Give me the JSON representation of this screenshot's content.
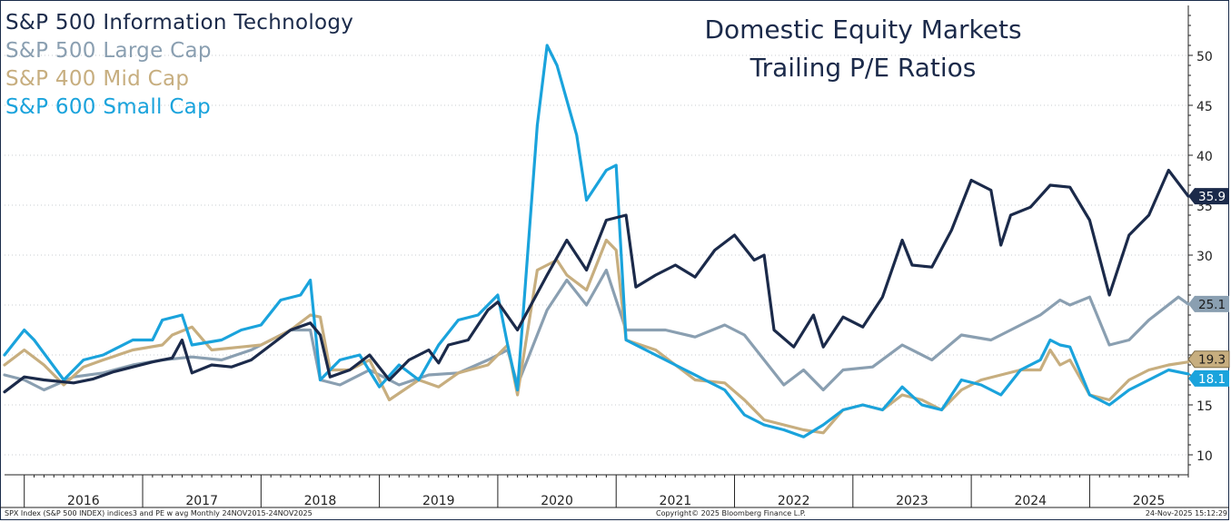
{
  "title": {
    "line1": "Domestic Equity Markets",
    "line2": "Trailing P/E Ratios"
  },
  "footer": {
    "left": "SPX Index (S&P 500 INDEX) indices3 and PE w avg Monthly 24NOV2015-24NOV2025",
    "center": "Copyright© 2025 Bloomberg Finance L.P.",
    "right": "24-Nov-2025 15:12:29"
  },
  "colors": {
    "tech": "#1b2a4a",
    "large": "#8a9fb1",
    "mid": "#c7ae7f",
    "small": "#1aa3dc",
    "grid": "#c9cdd2",
    "axis": "#222222"
  },
  "chart_data": {
    "type": "line",
    "title": "Domestic Equity Markets Trailing P/E Ratios",
    "x_range": [
      "2015-11",
      "2025-11"
    ],
    "ylim": [
      8,
      55
    ],
    "y_ticks": [
      10,
      15,
      20,
      25,
      30,
      35,
      40,
      45,
      50
    ],
    "y_axis_position": "right",
    "x_labels": [
      "2016",
      "2017",
      "2018",
      "2019",
      "2020",
      "2021",
      "2022",
      "2023",
      "2024",
      "2025"
    ],
    "grid": "horizontal dotted",
    "legend_position": "top-left",
    "series": [
      {
        "name": "S&P 500 Information Technology",
        "key": "tech",
        "last_label": "35.9",
        "last_value": 35.9,
        "points": [
          [
            "2015-11",
            16.3
          ],
          [
            "2016-01",
            17.8
          ],
          [
            "2016-03",
            17.5
          ],
          [
            "2016-06",
            17.2
          ],
          [
            "2016-08",
            17.6
          ],
          [
            "2016-10",
            18.3
          ],
          [
            "2016-12",
            18.8
          ],
          [
            "2017-02",
            19.3
          ],
          [
            "2017-04",
            19.7
          ],
          [
            "2017-05",
            21.5
          ],
          [
            "2017-06",
            18.2
          ],
          [
            "2017-08",
            19.0
          ],
          [
            "2017-10",
            18.8
          ],
          [
            "2017-12",
            19.5
          ],
          [
            "2018-02",
            21.0
          ],
          [
            "2018-04",
            22.5
          ],
          [
            "2018-06",
            23.2
          ],
          [
            "2018-07",
            22.0
          ],
          [
            "2018-08",
            17.8
          ],
          [
            "2018-10",
            18.5
          ],
          [
            "2018-12",
            20.0
          ],
          [
            "2019-02",
            17.5
          ],
          [
            "2019-04",
            19.5
          ],
          [
            "2019-06",
            20.5
          ],
          [
            "2019-07",
            19.2
          ],
          [
            "2019-08",
            21.0
          ],
          [
            "2019-10",
            21.5
          ],
          [
            "2019-12",
            24.5
          ],
          [
            "2020-01",
            25.3
          ],
          [
            "2020-03",
            22.5
          ],
          [
            "2020-06",
            28.0
          ],
          [
            "2020-08",
            31.5
          ],
          [
            "2020-10",
            28.5
          ],
          [
            "2020-12",
            33.5
          ],
          [
            "2021-02",
            34.0
          ],
          [
            "2021-03",
            26.8
          ],
          [
            "2021-05",
            28.0
          ],
          [
            "2021-07",
            29.0
          ],
          [
            "2021-09",
            27.8
          ],
          [
            "2021-11",
            30.5
          ],
          [
            "2022-01",
            32.0
          ],
          [
            "2022-03",
            29.5
          ],
          [
            "2022-04",
            30.0
          ],
          [
            "2022-05",
            22.5
          ],
          [
            "2022-07",
            20.8
          ],
          [
            "2022-09",
            24.0
          ],
          [
            "2022-10",
            20.8
          ],
          [
            "2022-12",
            23.8
          ],
          [
            "2023-02",
            22.8
          ],
          [
            "2023-04",
            25.8
          ],
          [
            "2023-06",
            31.5
          ],
          [
            "2023-07",
            29.0
          ],
          [
            "2023-09",
            28.8
          ],
          [
            "2023-11",
            32.5
          ],
          [
            "2024-01",
            37.5
          ],
          [
            "2024-03",
            36.5
          ],
          [
            "2024-04",
            31.0
          ],
          [
            "2024-05",
            34.0
          ],
          [
            "2024-07",
            34.8
          ],
          [
            "2024-09",
            37.0
          ],
          [
            "2024-11",
            36.8
          ],
          [
            "2025-01",
            33.5
          ],
          [
            "2025-03",
            26.0
          ],
          [
            "2025-05",
            32.0
          ],
          [
            "2025-07",
            34.0
          ],
          [
            "2025-09",
            38.5
          ],
          [
            "2025-11",
            35.9
          ]
        ]
      },
      {
        "name": "S&P 500 Large Cap",
        "key": "large",
        "last_label": "25.1",
        "last_value": 25.1,
        "points": [
          [
            "2015-11",
            18.0
          ],
          [
            "2016-01",
            17.5
          ],
          [
            "2016-03",
            16.5
          ],
          [
            "2016-06",
            17.8
          ],
          [
            "2016-09",
            18.2
          ],
          [
            "2016-12",
            19.0
          ],
          [
            "2017-03",
            19.5
          ],
          [
            "2017-06",
            19.8
          ],
          [
            "2017-09",
            19.5
          ],
          [
            "2017-12",
            20.5
          ],
          [
            "2018-02",
            21.5
          ],
          [
            "2018-04",
            22.5
          ],
          [
            "2018-06",
            22.5
          ],
          [
            "2018-07",
            17.5
          ],
          [
            "2018-09",
            17.0
          ],
          [
            "2018-12",
            18.5
          ],
          [
            "2019-03",
            17.0
          ],
          [
            "2019-06",
            18.0
          ],
          [
            "2019-09",
            18.2
          ],
          [
            "2019-12",
            19.5
          ],
          [
            "2020-02",
            20.5
          ],
          [
            "2020-03",
            17.0
          ],
          [
            "2020-06",
            24.5
          ],
          [
            "2020-08",
            27.5
          ],
          [
            "2020-10",
            25.0
          ],
          [
            "2020-12",
            28.5
          ],
          [
            "2021-02",
            22.5
          ],
          [
            "2021-06",
            22.5
          ],
          [
            "2021-09",
            21.8
          ],
          [
            "2021-12",
            23.0
          ],
          [
            "2022-02",
            22.0
          ],
          [
            "2022-04",
            19.5
          ],
          [
            "2022-06",
            17.0
          ],
          [
            "2022-08",
            18.5
          ],
          [
            "2022-10",
            16.5
          ],
          [
            "2022-12",
            18.5
          ],
          [
            "2023-03",
            18.8
          ],
          [
            "2023-06",
            21.0
          ],
          [
            "2023-09",
            19.5
          ],
          [
            "2023-12",
            22.0
          ],
          [
            "2024-03",
            21.5
          ],
          [
            "2024-06",
            23.0
          ],
          [
            "2024-08",
            24.0
          ],
          [
            "2024-10",
            25.5
          ],
          [
            "2024-11",
            25.0
          ],
          [
            "2025-01",
            25.8
          ],
          [
            "2025-03",
            21.0
          ],
          [
            "2025-05",
            21.5
          ],
          [
            "2025-07",
            23.5
          ],
          [
            "2025-10",
            25.8
          ],
          [
            "2025-11",
            25.1
          ]
        ]
      },
      {
        "name": "S&P 400 Mid Cap",
        "key": "mid",
        "last_label": "19.3",
        "last_value": 19.3,
        "points": [
          [
            "2015-11",
            19.0
          ],
          [
            "2016-01",
            20.5
          ],
          [
            "2016-03",
            19.0
          ],
          [
            "2016-05",
            17.0
          ],
          [
            "2016-07",
            18.8
          ],
          [
            "2016-09",
            19.5
          ],
          [
            "2016-12",
            20.5
          ],
          [
            "2017-03",
            21.0
          ],
          [
            "2017-04",
            22.0
          ],
          [
            "2017-06",
            22.8
          ],
          [
            "2017-08",
            20.5
          ],
          [
            "2017-11",
            20.8
          ],
          [
            "2018-01",
            21.0
          ],
          [
            "2018-04",
            22.5
          ],
          [
            "2018-06",
            24.0
          ],
          [
            "2018-07",
            23.8
          ],
          [
            "2018-08",
            18.5
          ],
          [
            "2018-10",
            18.5
          ],
          [
            "2018-12",
            19.5
          ],
          [
            "2019-02",
            15.5
          ],
          [
            "2019-05",
            17.5
          ],
          [
            "2019-07",
            16.8
          ],
          [
            "2019-09",
            18.2
          ],
          [
            "2019-12",
            19.0
          ],
          [
            "2020-02",
            21.0
          ],
          [
            "2020-03",
            16.0
          ],
          [
            "2020-05",
            28.5
          ],
          [
            "2020-07",
            29.5
          ],
          [
            "2020-08",
            28.0
          ],
          [
            "2020-10",
            26.5
          ],
          [
            "2020-12",
            31.5
          ],
          [
            "2021-01",
            30.5
          ],
          [
            "2021-02",
            21.5
          ],
          [
            "2021-05",
            20.5
          ],
          [
            "2021-07",
            19.0
          ],
          [
            "2021-09",
            17.5
          ],
          [
            "2021-12",
            17.2
          ],
          [
            "2022-02",
            15.5
          ],
          [
            "2022-04",
            13.5
          ],
          [
            "2022-06",
            13.0
          ],
          [
            "2022-08",
            12.5
          ],
          [
            "2022-10",
            12.2
          ],
          [
            "2022-12",
            14.5
          ],
          [
            "2023-02",
            15.0
          ],
          [
            "2023-04",
            14.5
          ],
          [
            "2023-06",
            16.0
          ],
          [
            "2023-08",
            15.5
          ],
          [
            "2023-10",
            14.5
          ],
          [
            "2023-12",
            16.5
          ],
          [
            "2024-02",
            17.5
          ],
          [
            "2024-04",
            18.0
          ],
          [
            "2024-06",
            18.5
          ],
          [
            "2024-08",
            18.5
          ],
          [
            "2024-09",
            20.5
          ],
          [
            "2024-10",
            19.0
          ],
          [
            "2024-11",
            19.5
          ],
          [
            "2025-01",
            16.0
          ],
          [
            "2025-03",
            15.5
          ],
          [
            "2025-05",
            17.5
          ],
          [
            "2025-07",
            18.5
          ],
          [
            "2025-09",
            19.0
          ],
          [
            "2025-11",
            19.3
          ]
        ]
      },
      {
        "name": "S&P 600 Small Cap",
        "key": "small",
        "last_label": "18.1",
        "last_value": 18.1,
        "points": [
          [
            "2015-11",
            20.0
          ],
          [
            "2016-01",
            22.5
          ],
          [
            "2016-02",
            21.5
          ],
          [
            "2016-05",
            17.5
          ],
          [
            "2016-07",
            19.5
          ],
          [
            "2016-09",
            20.0
          ],
          [
            "2016-12",
            21.5
          ],
          [
            "2017-02",
            21.5
          ],
          [
            "2017-03",
            23.5
          ],
          [
            "2017-05",
            24.0
          ],
          [
            "2017-06",
            21.0
          ],
          [
            "2017-09",
            21.5
          ],
          [
            "2017-11",
            22.5
          ],
          [
            "2018-01",
            23.0
          ],
          [
            "2018-03",
            25.5
          ],
          [
            "2018-05",
            26.0
          ],
          [
            "2018-06",
            27.5
          ],
          [
            "2018-07",
            17.5
          ],
          [
            "2018-09",
            19.5
          ],
          [
            "2018-11",
            20.0
          ],
          [
            "2019-01",
            16.8
          ],
          [
            "2019-03",
            19.0
          ],
          [
            "2019-05",
            17.5
          ],
          [
            "2019-07",
            21.0
          ],
          [
            "2019-09",
            23.5
          ],
          [
            "2019-11",
            24.0
          ],
          [
            "2020-01",
            26.0
          ],
          [
            "2020-02",
            21.0
          ],
          [
            "2020-03",
            16.5
          ],
          [
            "2020-05",
            43.0
          ],
          [
            "2020-06",
            51.0
          ],
          [
            "2020-07",
            49.0
          ],
          [
            "2020-09",
            42.0
          ],
          [
            "2020-10",
            35.5
          ],
          [
            "2020-12",
            38.5
          ],
          [
            "2021-01",
            39.0
          ],
          [
            "2021-02",
            21.5
          ],
          [
            "2021-04",
            20.5
          ],
          [
            "2021-06",
            19.5
          ],
          [
            "2021-08",
            18.5
          ],
          [
            "2021-10",
            17.5
          ],
          [
            "2021-12",
            16.5
          ],
          [
            "2022-02",
            14.0
          ],
          [
            "2022-04",
            13.0
          ],
          [
            "2022-06",
            12.5
          ],
          [
            "2022-08",
            11.8
          ],
          [
            "2022-10",
            13.0
          ],
          [
            "2022-12",
            14.5
          ],
          [
            "2023-02",
            15.0
          ],
          [
            "2023-04",
            14.5
          ],
          [
            "2023-06",
            16.8
          ],
          [
            "2023-08",
            15.0
          ],
          [
            "2023-10",
            14.5
          ],
          [
            "2023-12",
            17.5
          ],
          [
            "2024-02",
            17.0
          ],
          [
            "2024-04",
            16.0
          ],
          [
            "2024-06",
            18.5
          ],
          [
            "2024-08",
            19.5
          ],
          [
            "2024-09",
            21.5
          ],
          [
            "2024-10",
            21.0
          ],
          [
            "2024-11",
            20.8
          ],
          [
            "2025-01",
            16.0
          ],
          [
            "2025-03",
            15.0
          ],
          [
            "2025-05",
            16.5
          ],
          [
            "2025-07",
            17.5
          ],
          [
            "2025-09",
            18.5
          ],
          [
            "2025-11",
            18.1
          ]
        ]
      }
    ]
  }
}
